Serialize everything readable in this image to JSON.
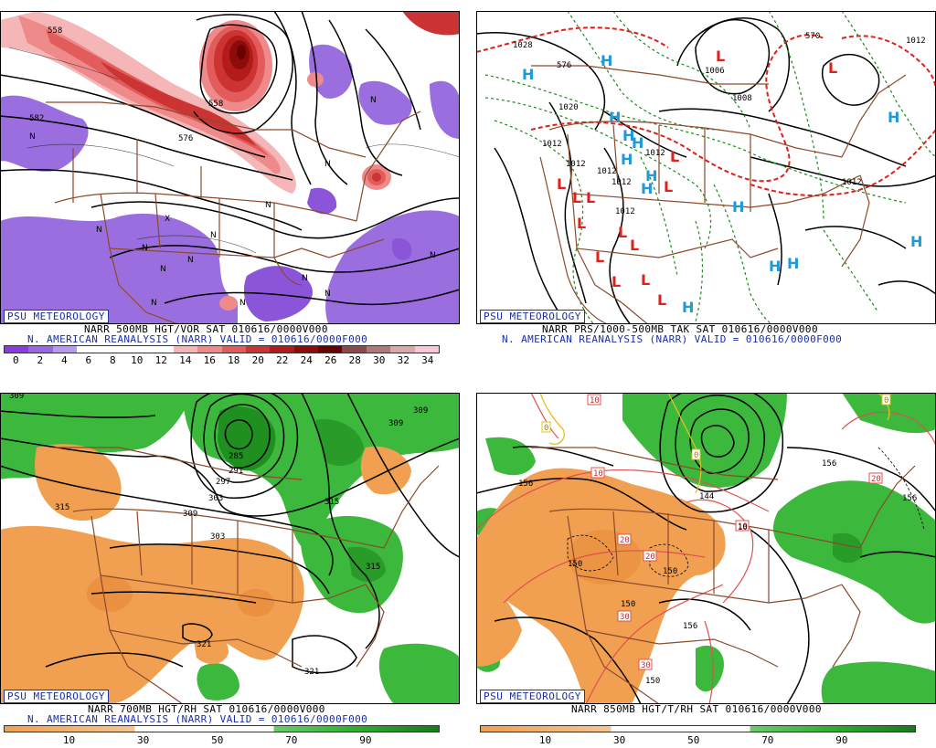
{
  "panels": [
    {
      "id": "p1",
      "logo": "PSU METEOROLOGY",
      "caption1": "NARR 500MB HGT/VOR SAT 010616/0000V000",
      "caption2": "N. AMERICAN REANALYSIS (NARR) VALID = 010616/0000F000",
      "contour_labels": [
        "558",
        "582",
        "558",
        "576"
      ],
      "scale_colors": [
        "#8a3ce0",
        "#9a66e6",
        "#b79af0",
        "#ffffff",
        "#ffffff",
        "#ffffff",
        "#ffffff",
        "#f4b6b6",
        "#ef8a8a",
        "#e25c5c",
        "#cc3333",
        "#b31b1b",
        "#8e0b0b",
        "#6a0000",
        "#8a4a4a",
        "#b07878",
        "#d9a8a8",
        "#f7c8d8"
      ],
      "scale_ticks": [
        "0",
        "2",
        "4",
        "6",
        "8",
        "10",
        "12",
        "14",
        "16",
        "18",
        "20",
        "22",
        "24",
        "26",
        "28",
        "30",
        "32",
        "34"
      ]
    },
    {
      "id": "p2",
      "logo": "PSU METEOROLOGY",
      "caption1": "NARR PRS/1000-500MB TAK SAT 010616/0000V000",
      "caption2": "N. AMERICAN REANALYSIS (NARR) VALID = 010616/0000F000",
      "contour_labels": [
        "1028",
        "1020",
        "1012",
        "1012",
        "1012",
        "1012",
        "1012",
        "1012",
        "1006",
        "1008",
        "1012",
        "570",
        "576",
        "1012"
      ],
      "highs": [
        "H",
        "H",
        "H",
        "H",
        "H",
        "H",
        "H",
        "H",
        "H",
        "H",
        "H",
        "H"
      ],
      "lows": [
        "L",
        "L",
        "L",
        "L",
        "L",
        "L",
        "L",
        "L",
        "L",
        "L",
        "L",
        "L",
        "L"
      ]
    },
    {
      "id": "p3",
      "logo": "PSU METEOROLOGY",
      "caption1": "NARR 700MB HGT/RH SAT 010616/0000V000",
      "caption2": "N. AMERICAN REANALYSIS (NARR) VALID = 010616/0000F000",
      "contour_labels": [
        "309",
        "309",
        "303",
        "285",
        "291",
        "297",
        "303",
        "309",
        "315",
        "315",
        "315",
        "321",
        "321"
      ],
      "scale_ticks": [
        "10",
        "30",
        "50",
        "70",
        "90"
      ]
    },
    {
      "id": "p4",
      "logo": "PSU METEOROLOGY",
      "caption1": "NARR 850MB HGT/T/RH SAT 010616/0000V000",
      "contour_labels": [
        "156",
        "10",
        "0",
        "0",
        "10",
        "144",
        "156",
        "10",
        "20",
        "150",
        "20",
        "150",
        "150",
        "30",
        "30",
        "156",
        "150",
        "10",
        "0",
        "156",
        "20"
      ],
      "scale_ticks": [
        "10",
        "30",
        "50",
        "70",
        "90"
      ]
    }
  ],
  "colors": {
    "logo_text": "#1a2fa8",
    "vort_red": "#d43a3a",
    "vort_purple": "#8a55d9",
    "rh_green": "#2fb12f",
    "rh_orange": "#f0a050",
    "borders": "#8b4a2b",
    "high": "#1e9ad6",
    "low": "#e0201a",
    "thickness_red": "#e0201a",
    "thickness_green": "#1a8a1a"
  }
}
